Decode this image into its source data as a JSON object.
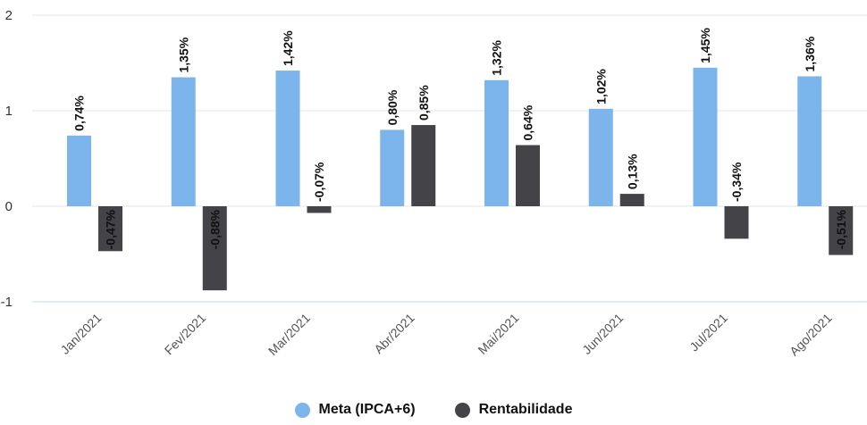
{
  "chart_data": {
    "type": "bar",
    "categories": [
      "Jan/2021",
      "Fev/2021",
      "Mar/2021",
      "Abr/2021",
      "Mai/2021",
      "Jun/2021",
      "Jul/2021",
      "Ago/2021"
    ],
    "series": [
      {
        "name": "Meta (IPCA+6)",
        "color": "#7cb5ec",
        "values": [
          0.74,
          1.35,
          1.42,
          0.8,
          1.32,
          1.02,
          1.45,
          1.36
        ],
        "labels": [
          "0,74%",
          "1,35%",
          "1,42%",
          "0,80%",
          "1,32%",
          "1,02%",
          "1,45%",
          "1,36%"
        ]
      },
      {
        "name": "Rentabilidade",
        "color": "#434348",
        "values": [
          -0.47,
          -0.88,
          -0.07,
          0.85,
          0.64,
          0.13,
          -0.34,
          -0.51
        ],
        "labels": [
          "-0,47%",
          "-0,88%",
          "-0,07%",
          "0,85%",
          "0,64%",
          "0,13%",
          "-0,34%",
          "-0,51%"
        ]
      }
    ],
    "yticks": [
      2,
      1,
      0,
      -1
    ],
    "ylim": [
      -1,
      2
    ],
    "grid": true,
    "legend_position": "bottom-center",
    "title": "",
    "xlabel": "",
    "ylabel": ""
  }
}
